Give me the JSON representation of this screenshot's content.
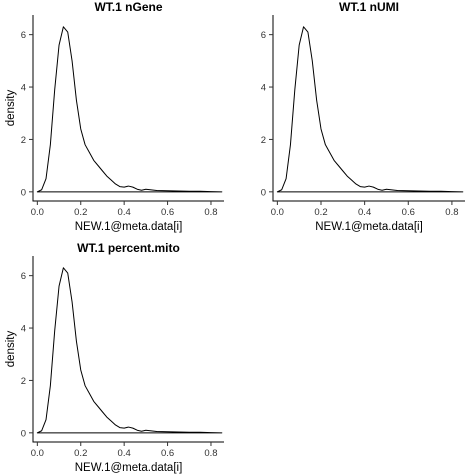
{
  "chart_data": [
    {
      "type": "line",
      "title": "WT.1 nGene",
      "xlabel": "NEW.1@meta.data[i]",
      "ylabel": "density",
      "xlim": [
        -0.02,
        0.86
      ],
      "ylim": [
        -0.35,
        6.75
      ],
      "xticks": [
        "0.0",
        "0.2",
        "0.4",
        "0.6",
        "0.8"
      ],
      "yticks": [
        "0",
        "2",
        "4",
        "6"
      ],
      "grid": false,
      "series": [
        {
          "x": [
            0.0,
            0.02,
            0.04,
            0.06,
            0.08,
            0.1,
            0.12,
            0.14,
            0.16,
            0.18,
            0.2,
            0.22,
            0.24,
            0.26,
            0.28,
            0.3,
            0.32,
            0.34,
            0.36,
            0.38,
            0.4,
            0.42,
            0.44,
            0.46,
            0.48,
            0.5,
            0.52,
            0.55,
            0.6,
            0.65,
            0.7,
            0.75,
            0.8,
            0.85
          ],
          "y": [
            0.0,
            0.08,
            0.5,
            1.8,
            3.9,
            5.6,
            6.3,
            6.1,
            5.0,
            3.5,
            2.4,
            1.8,
            1.5,
            1.2,
            1.0,
            0.8,
            0.6,
            0.45,
            0.3,
            0.2,
            0.18,
            0.22,
            0.18,
            0.1,
            0.06,
            0.1,
            0.08,
            0.05,
            0.04,
            0.03,
            0.02,
            0.02,
            0.01,
            0.0
          ]
        }
      ]
    },
    {
      "type": "line",
      "title": "WT.1 nUMI",
      "xlabel": "NEW.1@meta.data[i]",
      "ylabel": "",
      "xlim": [
        -0.02,
        0.86
      ],
      "ylim": [
        -0.35,
        6.75
      ],
      "xticks": [
        "0.0",
        "0.2",
        "0.4",
        "0.6",
        "0.8"
      ],
      "yticks": [
        "0",
        "2",
        "4",
        "6"
      ],
      "grid": false,
      "series": [
        {
          "x": [
            0.0,
            0.02,
            0.04,
            0.06,
            0.08,
            0.1,
            0.12,
            0.14,
            0.16,
            0.18,
            0.2,
            0.22,
            0.24,
            0.26,
            0.28,
            0.3,
            0.32,
            0.34,
            0.36,
            0.38,
            0.4,
            0.42,
            0.44,
            0.46,
            0.48,
            0.5,
            0.52,
            0.55,
            0.6,
            0.65,
            0.7,
            0.75,
            0.8,
            0.85
          ],
          "y": [
            0.0,
            0.08,
            0.5,
            1.8,
            3.9,
            5.6,
            6.3,
            6.1,
            5.0,
            3.5,
            2.4,
            1.8,
            1.5,
            1.2,
            1.0,
            0.8,
            0.6,
            0.45,
            0.3,
            0.2,
            0.18,
            0.22,
            0.18,
            0.1,
            0.06,
            0.1,
            0.08,
            0.05,
            0.04,
            0.03,
            0.02,
            0.02,
            0.01,
            0.0
          ]
        }
      ]
    },
    {
      "type": "line",
      "title": "WT.1 percent.mito",
      "xlabel": "NEW.1@meta.data[i]",
      "ylabel": "density",
      "xlim": [
        -0.02,
        0.86
      ],
      "ylim": [
        -0.35,
        6.75
      ],
      "xticks": [
        "0.0",
        "0.2",
        "0.4",
        "0.6",
        "0.8"
      ],
      "yticks": [
        "0",
        "2",
        "4",
        "6"
      ],
      "grid": false,
      "series": [
        {
          "x": [
            0.0,
            0.02,
            0.04,
            0.06,
            0.08,
            0.1,
            0.12,
            0.14,
            0.16,
            0.18,
            0.2,
            0.22,
            0.24,
            0.26,
            0.28,
            0.3,
            0.32,
            0.34,
            0.36,
            0.38,
            0.4,
            0.42,
            0.44,
            0.46,
            0.48,
            0.5,
            0.52,
            0.55,
            0.6,
            0.65,
            0.7,
            0.75,
            0.8,
            0.85
          ],
          "y": [
            0.0,
            0.08,
            0.5,
            1.8,
            3.9,
            5.6,
            6.3,
            6.1,
            5.0,
            3.5,
            2.4,
            1.8,
            1.5,
            1.2,
            1.0,
            0.8,
            0.6,
            0.45,
            0.3,
            0.2,
            0.18,
            0.22,
            0.18,
            0.1,
            0.06,
            0.1,
            0.08,
            0.05,
            0.04,
            0.03,
            0.02,
            0.02,
            0.01,
            0.0
          ]
        }
      ]
    }
  ]
}
